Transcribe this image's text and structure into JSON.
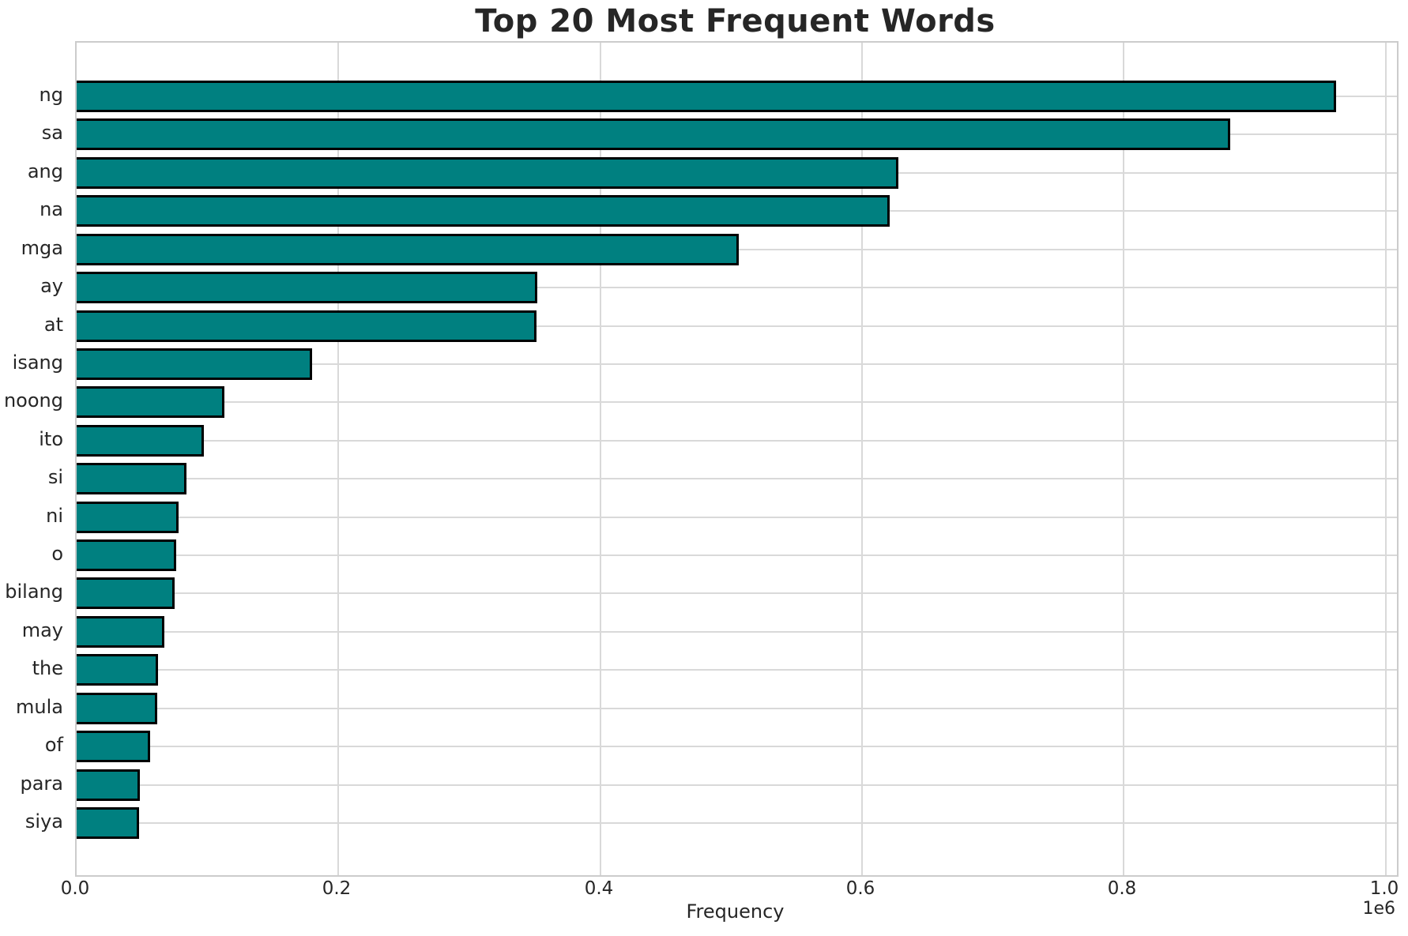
{
  "chart_data": {
    "type": "bar",
    "orientation": "horizontal",
    "title": "Top 20 Most Frequent Words",
    "xlabel": "Frequency",
    "ylabel": "",
    "x_offset_label": "1e6",
    "categories": [
      "ng",
      "sa",
      "ang",
      "na",
      "mga",
      "ay",
      "at",
      "isang",
      "noong",
      "ito",
      "si",
      "ni",
      "o",
      "bilang",
      "may",
      "the",
      "mula",
      "of",
      "para",
      "siya"
    ],
    "values": [
      962000,
      881000,
      628000,
      621000,
      506000,
      352000,
      351000,
      180000,
      113000,
      97000,
      84000,
      78000,
      76000,
      75000,
      67000,
      62000,
      61500,
      56000,
      48500,
      47900
    ],
    "xlim": [
      0,
      1008600
    ],
    "xticks": [
      0,
      200000,
      400000,
      600000,
      800000,
      1000000
    ],
    "xtick_labels": [
      "0.0",
      "0.2",
      "0.4",
      "0.6",
      "0.8",
      "1.0"
    ],
    "grid": true,
    "legend": null,
    "bar_color": "#008080",
    "bar_edge_color": "#000000",
    "grid_color": "#d9d9d9",
    "spine_color": "#cccccc",
    "text_color": "#262626",
    "background_color": "#ffffff"
  }
}
